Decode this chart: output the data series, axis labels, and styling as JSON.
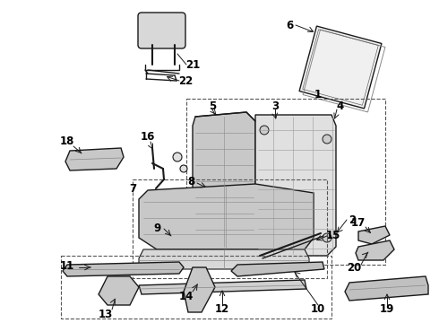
{
  "background_color": "#ffffff",
  "line_color": "#1a1a1a",
  "label_color": "#000000",
  "figsize": [
    4.9,
    3.6
  ],
  "dpi": 100,
  "font_size": 8.5,
  "title": ""
}
